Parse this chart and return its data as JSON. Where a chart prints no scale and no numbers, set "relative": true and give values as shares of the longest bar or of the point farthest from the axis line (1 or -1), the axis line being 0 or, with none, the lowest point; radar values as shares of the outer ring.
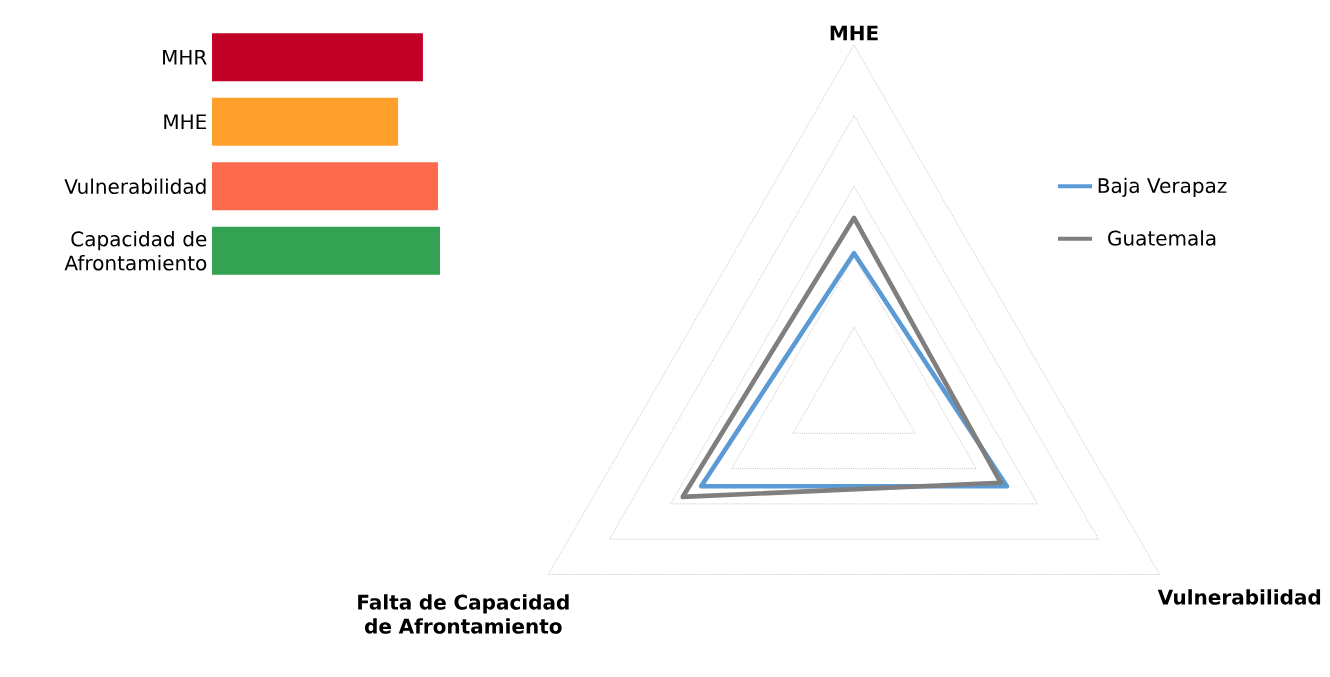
{
  "chart_data": [
    {
      "type": "bar",
      "orientation": "horizontal",
      "relative": true,
      "categories": [
        "MHR",
        "MHE",
        "Vulnerabilidad",
        "Capacidad de Afrontamiento"
      ],
      "values": [
        0.925,
        0.816,
        0.991,
        1
      ],
      "colors": [
        "#c00026",
        "#ffa02d",
        "#fb6a4a",
        "#33a353"
      ]
    },
    {
      "type": "radar",
      "relative": true,
      "grid": true,
      "legend": "right",
      "categories": [
        "MHE",
        "Vulnerabilidad",
        "Falta de Capacidad de Afrontamiento"
      ],
      "series": [
        {
          "name": "Baja Verapaz",
          "color": "#5b9bd5",
          "values": [
            0.41,
            0.5,
            0.5
          ]
        },
        {
          "name": "Guatemala",
          "color": "#7f7f7f",
          "values": [
            0.51,
            0.48,
            0.56
          ]
        }
      ]
    }
  ]
}
